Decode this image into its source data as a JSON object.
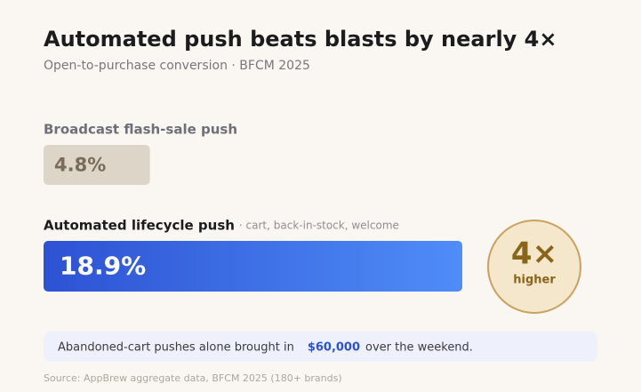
{
  "chart_data": {
    "type": "bar",
    "orientation": "horizontal",
    "title": "Automated push beats blasts by nearly 4×",
    "subtitle": "Open-to-purchase conversion · BFCM 2025",
    "categories": [
      "Broadcast flash-sale push",
      "Automated lifecycle push"
    ],
    "category_notes": [
      null,
      "· cart, back-in-stock, welcome"
    ],
    "values": [
      4.8,
      18.9
    ],
    "value_labels": [
      "4.8%",
      "18.9%"
    ],
    "colors": [
      "#ddd5c8",
      "#2d52d3"
    ],
    "badge": {
      "value": "4×",
      "label": "higher"
    },
    "callout": {
      "before": "Abandoned-cart pushes alone brought in",
      "highlight": "$60,000",
      "after": "over the weekend."
    },
    "source": "Source: AppBrew aggregate data, BFCM 2025 (180+ brands)"
  }
}
